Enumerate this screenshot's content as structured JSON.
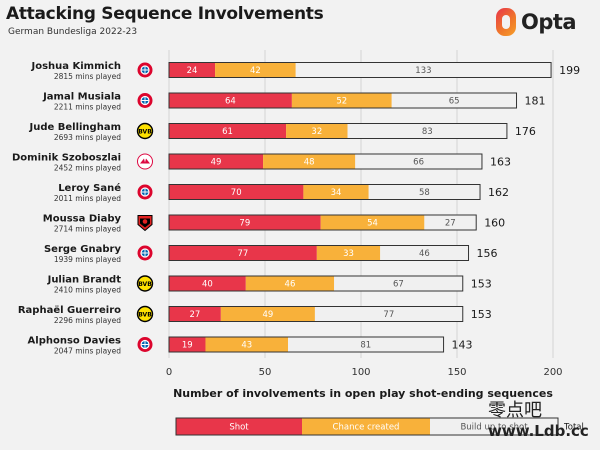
{
  "header": {
    "title": "Attacking Sequence Involvements",
    "subtitle": "German Bundesliga 2022-23",
    "logo_text": "Opta"
  },
  "watermark": {
    "line1": "零点吧",
    "line2": "www.Ldb.cc"
  },
  "colors": {
    "shot": "#e8364a",
    "chance_created": "#f8b13a",
    "build_up": "#f0f0f0",
    "bar_border": "#333333",
    "background": "#f2f2f2"
  },
  "chart_data": {
    "type": "bar",
    "orientation": "horizontal",
    "stacked": true,
    "title": "Attacking Sequence Involvements",
    "subtitle": "German Bundesliga 2022-23",
    "xlabel": "Number of involvements in open play shot-ending sequences",
    "xlim": [
      0,
      200
    ],
    "xticks": [
      0,
      50,
      100,
      150,
      200
    ],
    "grid": true,
    "legend_position": "bottom",
    "legend_total_label": "Total",
    "series": [
      {
        "name": "Shot",
        "color": "#e8364a"
      },
      {
        "name": "Chance created",
        "color": "#f8b13a"
      },
      {
        "name": "Build up to shot",
        "color": "#f0f0f0"
      }
    ],
    "players": [
      {
        "name": "Joshua Kimmich",
        "minutes": "2815 mins played",
        "club": "bayern",
        "values": [
          24,
          42,
          133
        ],
        "total": 199
      },
      {
        "name": "Jamal Musiala",
        "minutes": "2211 mins played",
        "club": "bayern",
        "values": [
          64,
          52,
          65
        ],
        "total": 181
      },
      {
        "name": "Jude Bellingham",
        "minutes": "2693 mins played",
        "club": "dortmund",
        "values": [
          61,
          32,
          83
        ],
        "total": 176
      },
      {
        "name": "Dominik Szoboszlai",
        "minutes": "2452 mins played",
        "club": "leipzig",
        "values": [
          49,
          48,
          66
        ],
        "total": 163
      },
      {
        "name": "Leroy Sané",
        "minutes": "2011 mins played",
        "club": "bayern",
        "values": [
          70,
          34,
          58
        ],
        "total": 162
      },
      {
        "name": "Moussa Diaby",
        "minutes": "2714 mins played",
        "club": "leverkusen",
        "values": [
          79,
          54,
          27
        ],
        "total": 160
      },
      {
        "name": "Serge Gnabry",
        "minutes": "1939 mins played",
        "club": "bayern",
        "values": [
          77,
          33,
          46
        ],
        "total": 156
      },
      {
        "name": "Julian Brandt",
        "minutes": "2410 mins played",
        "club": "dortmund",
        "values": [
          40,
          46,
          67
        ],
        "total": 153
      },
      {
        "name": "Raphaël Guerreiro",
        "minutes": "2296 mins played",
        "club": "dortmund",
        "values": [
          27,
          49,
          77
        ],
        "total": 153
      },
      {
        "name": "Alphonso Davies",
        "minutes": "2047 mins played",
        "club": "bayern",
        "values": [
          19,
          43,
          81
        ],
        "total": 143
      }
    ]
  }
}
